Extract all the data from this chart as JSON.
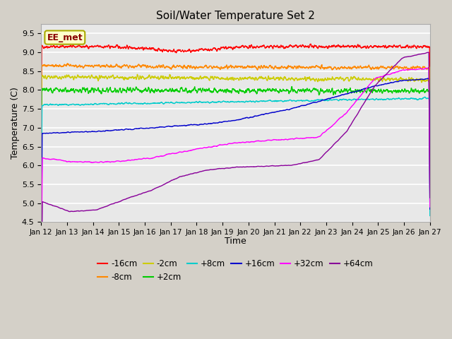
{
  "title": "Soil/Water Temperature Set 2",
  "xlabel": "Time",
  "ylabel": "Temperature (C)",
  "ylim": [
    4.5,
    9.75
  ],
  "n_days": 15,
  "fig_facecolor": "#d4d0c8",
  "ax_facecolor": "#e8e8e8",
  "grid_color": "white",
  "annotation_label": "EE_met",
  "annotation_bg": "#ffffcc",
  "annotation_border": "#aaaa00",
  "series": [
    {
      "label": "-16cm",
      "color": "#ff0000"
    },
    {
      "label": "-8cm",
      "color": "#ff8800"
    },
    {
      "label": "-2cm",
      "color": "#cccc00"
    },
    {
      "label": "+2cm",
      "color": "#00cc00"
    },
    {
      "label": "+8cm",
      "color": "#00cccc"
    },
    {
      "label": "+16cm",
      "color": "#0000cc"
    },
    {
      "label": "+32cm",
      "color": "#ff00ff"
    },
    {
      "label": "+64cm",
      "color": "#880099"
    }
  ],
  "tick_labels": [
    "Jan 12",
    "Jan 13",
    "Jan 14",
    "Jan 15",
    "Jan 16",
    "Jan 17",
    "Jan 18",
    "Jan 19",
    "Jan 20",
    "Jan 21",
    "Jan 22",
    "Jan 23",
    "Jan 24",
    "Jan 25",
    "Jan 26",
    "Jan 27"
  ],
  "yticks": [
    4.5,
    5.0,
    5.5,
    6.0,
    6.5,
    7.0,
    7.5,
    8.0,
    8.5,
    9.0,
    9.5
  ]
}
